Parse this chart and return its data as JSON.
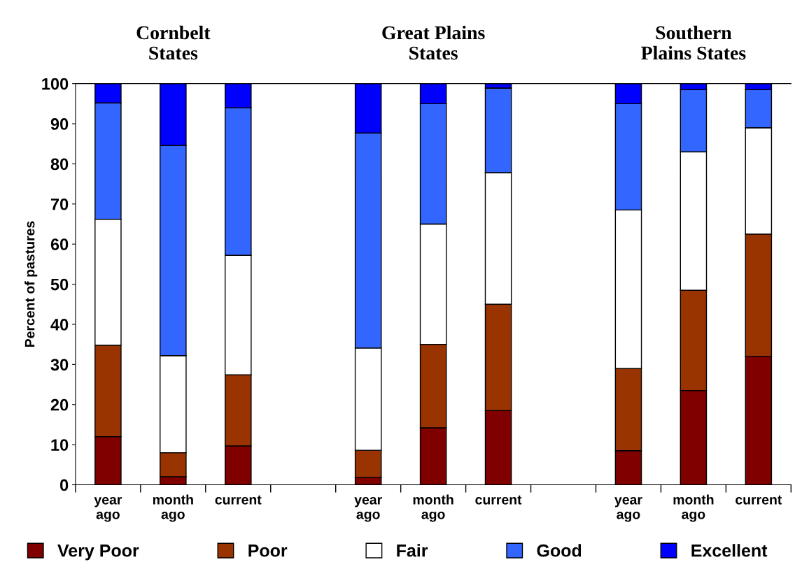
{
  "chart_data": {
    "type": "bar",
    "stacked": true,
    "ylabel": "Percent of pastures",
    "categories": [
      "year\nago",
      "month\nago",
      "current",
      null,
      "year\nago",
      "month\nago",
      "current",
      null,
      "year\nago",
      "month\nago",
      "current"
    ],
    "series": [
      {
        "name": "Very Poor",
        "color": "#800000",
        "values": [
          12,
          2,
          9.7,
          null,
          1.8,
          14.2,
          18.5,
          null,
          8.5,
          23.5,
          32
        ]
      },
      {
        "name": "Poor",
        "color": "#993300",
        "values": [
          22.8,
          6,
          17.7,
          null,
          6.8,
          20.8,
          26.5,
          null,
          20.5,
          25,
          30.5
        ]
      },
      {
        "name": "Fair",
        "color": "#ffffff",
        "values": [
          31.4,
          24.2,
          29.8,
          null,
          25.5,
          30,
          32.8,
          null,
          39.5,
          34.5,
          26.5
        ]
      },
      {
        "name": "Good",
        "color": "#3366ff",
        "values": [
          29,
          52.4,
          36.8,
          null,
          53.6,
          30,
          21.1,
          null,
          26.5,
          15.5,
          9.5
        ]
      },
      {
        "name": "Excellent",
        "color": "#0000ff",
        "values": [
          4.8,
          15.4,
          6,
          null,
          12.3,
          5,
          1.1,
          null,
          5,
          1.5,
          1.5
        ]
      }
    ],
    "annotations": [
      "Cornbelt\nStates",
      "Great Plains\nStates",
      "Southern\nPlains States"
    ],
    "ylim": [
      0,
      100
    ],
    "yticks": [
      0,
      10,
      20,
      30,
      40,
      50,
      60,
      70,
      80,
      90,
      100
    ],
    "grid": false,
    "legend": "bottom"
  }
}
